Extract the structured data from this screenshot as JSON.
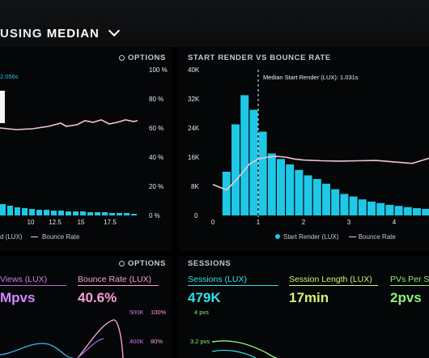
{
  "header": {
    "title_prefix": "USING",
    "title_strong": "MEDIAN"
  },
  "panel_left": {
    "options_label": "OPTIONS",
    "annotation": "2.056s",
    "y_right_ticks": [
      "100 %",
      "80 %",
      "60 %",
      "40 %",
      "20 %",
      "0 %"
    ],
    "x_ticks": [
      "10",
      "12.5",
      "15",
      "17.5"
    ],
    "legend_a": "d (LUX)",
    "legend_b": "Bounce Rate"
  },
  "panel_right": {
    "title": "START RENDER VS BOUNCE RATE",
    "median_label": "Median Start Render (LUX): 1.031s",
    "legend_a": "Start Render (LUX)",
    "legend_b": "Bounce Rate"
  },
  "bottom_left": {
    "options_label": "OPTIONS",
    "metric1_label": "Views (LUX)",
    "metric1_value": "Mpvs",
    "metric2_label": "Bounce Rate (LUX)",
    "metric2_value": "40.6%",
    "tick_500k": "500K",
    "tick_100": "100%",
    "tick_400k": "400K",
    "tick_80": "80%"
  },
  "sessions": {
    "title": "SESSIONS",
    "m1_label": "Sessions (LUX)",
    "m1_value": "479K",
    "m2_label": "Session Length (LUX)",
    "m2_value": "17min",
    "m3_label": "PVs Per Se",
    "m3_value": "2pvs",
    "tick_4pvs": "4 pvs",
    "tick_32pvs": "3.2 pvs"
  },
  "colors": {
    "bar": "#1ec8e6",
    "bounce": "#f3c4d6",
    "green": "#8ff07a",
    "pink": "#f7a0d8"
  },
  "chart_data": {
    "type": "bar",
    "title": "START RENDER VS BOUNCE RATE",
    "x_ticks": [
      "0",
      "1",
      "2",
      "3",
      "4"
    ],
    "xlim": [
      0,
      4.9
    ],
    "y_ticks": [
      "40K",
      "32K",
      "24K",
      "16K",
      "8K",
      "0"
    ],
    "ylim": [
      0,
      40000
    ],
    "bar_width": 0.2,
    "series": [
      {
        "name": "Start Render (LUX)",
        "x": [
          0.3,
          0.5,
          0.7,
          0.9,
          1.1,
          1.3,
          1.5,
          1.7,
          1.9,
          2.1,
          2.3,
          2.5,
          2.7,
          2.9,
          3.1,
          3.3,
          3.5,
          3.7,
          3.9,
          4.1,
          4.3,
          4.5,
          4.7,
          4.9
        ],
        "values": [
          12000,
          25000,
          33000,
          29000,
          23000,
          17000,
          15500,
          14000,
          12500,
          11000,
          10000,
          8700,
          7200,
          5900,
          5200,
          4400,
          3800,
          3400,
          2900,
          2600,
          2300,
          2000,
          1800,
          1600
        ]
      },
      {
        "name": "Bounce Rate",
        "axis": "right",
        "x": [
          0,
          0.3,
          0.5,
          0.8,
          1.0,
          1.2,
          1.4,
          1.6,
          1.8,
          2.0,
          2.4,
          2.8,
          3.2,
          3.6,
          4.0,
          4.4,
          4.8
        ],
        "values": [
          8500,
          7000,
          9500,
          14000,
          15500,
          16000,
          16200,
          16000,
          15500,
          15200,
          15000,
          14900,
          15000,
          15100,
          14700,
          14300,
          15800
        ]
      }
    ]
  }
}
